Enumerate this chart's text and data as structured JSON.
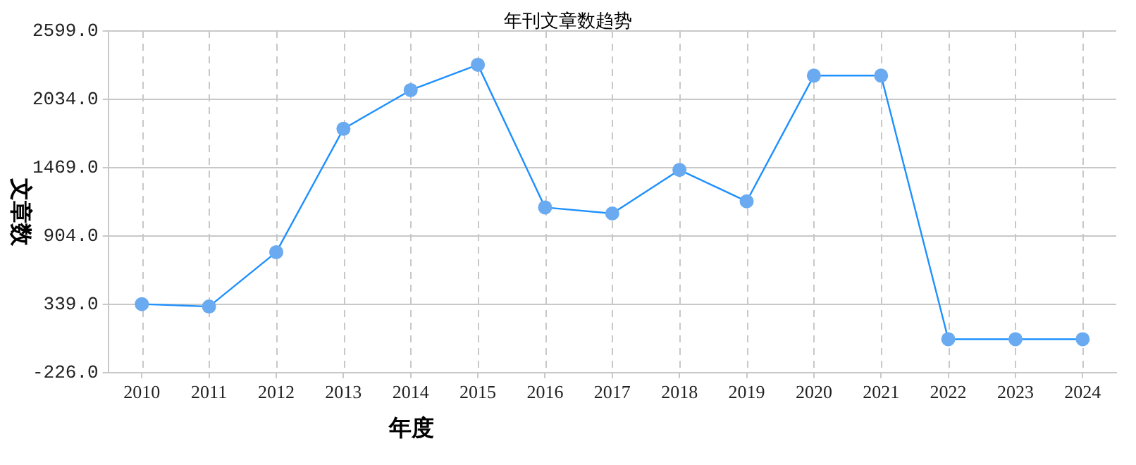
{
  "chart_data": {
    "type": "line",
    "title": "年刊文章数趋势",
    "xlabel": "年度",
    "ylabel": "文章数",
    "categories": [
      "2010",
      "2011",
      "2012",
      "2013",
      "2014",
      "2015",
      "2016",
      "2017",
      "2018",
      "2019",
      "2020",
      "2021",
      "2022",
      "2023",
      "2024"
    ],
    "series": [
      {
        "color": "#1e90ff",
        "values": [
          340,
          320,
          770,
          1790,
          2110,
          2320,
          1140,
          1090,
          1450,
          1190,
          2230,
          2230,
          50,
          50,
          50
        ]
      }
    ],
    "ylim": [
      -226,
      2599
    ],
    "yticks": [
      {
        "value": -226,
        "label": "-226.0"
      },
      {
        "value": 339,
        "label": "339.0"
      },
      {
        "value": 904,
        "label": "904.0"
      },
      {
        "value": 1469,
        "label": "1469.0"
      },
      {
        "value": 2034,
        "label": "2034.0"
      },
      {
        "value": 2599,
        "label": "2599.0"
      }
    ],
    "grid": true,
    "legend": false,
    "marker": "circle",
    "line_style": "solid"
  }
}
